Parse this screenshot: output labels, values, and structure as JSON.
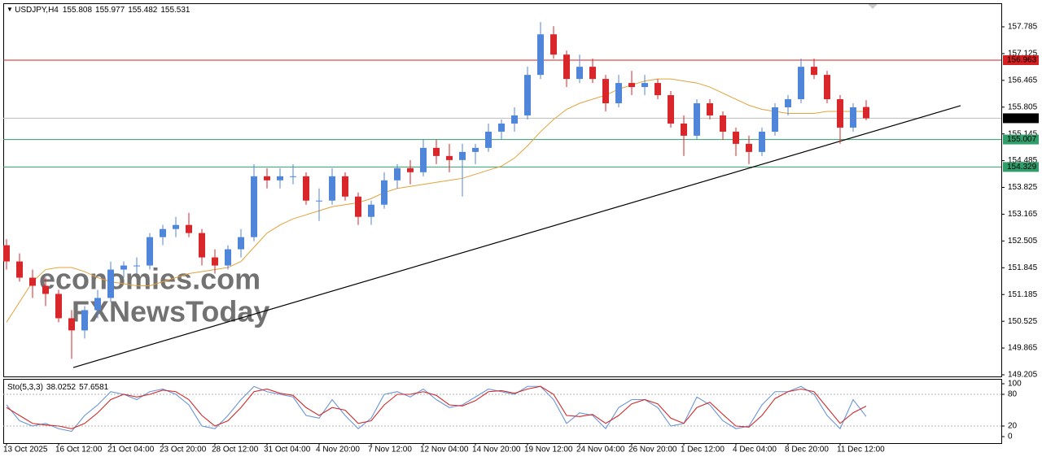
{
  "chart_data": [
    {
      "type": "candlestick",
      "title": "USDJPY,H4",
      "categories": [
        "13 Oct 2025",
        null,
        null,
        null,
        "16 Oct 12:00",
        null,
        null,
        null,
        "21 Oct 04:00",
        null,
        null,
        null,
        "23 Oct 20:00",
        null,
        null,
        null,
        "28 Oct 12:00",
        null,
        null,
        null,
        "31 Oct 04:00",
        null,
        null,
        null,
        "4 Nov 20:00",
        null,
        null,
        null,
        "7 Nov 12:00",
        null,
        null,
        null,
        "12 Nov 04:00",
        null,
        null,
        null,
        "14 Nov 20:00",
        null,
        null,
        null,
        "19 Nov 12:00",
        null,
        null,
        null,
        "24 Nov 04:00",
        null,
        null,
        null,
        "26 Nov 20:00",
        null,
        null,
        null,
        "1 Dec 12:00",
        null,
        null,
        null,
        "4 Dec 04:00",
        null,
        null,
        null,
        "8 Dec 20:00",
        null,
        null,
        null,
        "11 Dec 12:00",
        null,
        null
      ],
      "open": [
        152.4,
        152.0,
        151.6,
        151.4,
        151.2,
        150.6,
        150.3,
        150.8,
        151.1,
        151.8,
        151.9,
        151.9,
        152.6,
        152.8,
        152.9,
        152.7,
        152.1,
        151.9,
        152.3,
        152.6,
        154.1,
        154.0,
        154.1,
        154.1,
        153.5,
        153.5,
        154.1,
        153.6,
        153.1,
        153.4,
        154.0,
        154.3,
        154.2,
        154.8,
        154.6,
        154.5,
        154.7,
        154.8,
        155.2,
        155.4,
        155.6,
        156.6,
        157.6,
        157.1,
        156.5,
        156.8,
        156.5,
        155.9,
        156.4,
        156.3,
        156.4,
        156.1,
        155.4,
        155.1,
        155.9,
        155.6,
        155.2,
        154.9,
        154.7,
        155.2,
        155.8,
        156.0,
        156.8,
        156.6,
        156.0,
        155.3,
        155.808
      ],
      "high": [
        152.55,
        152.2,
        151.8,
        151.6,
        151.3,
        150.8,
        150.9,
        151.3,
        152.0,
        152.0,
        152.1,
        152.7,
        152.9,
        153.1,
        153.2,
        152.8,
        152.3,
        152.4,
        152.8,
        154.4,
        154.3,
        154.3,
        154.4,
        154.2,
        153.8,
        154.3,
        154.2,
        153.7,
        153.5,
        154.2,
        154.4,
        154.5,
        155.0,
        155.0,
        154.9,
        154.9,
        154.9,
        155.4,
        155.5,
        155.8,
        156.8,
        157.9,
        157.8,
        157.2,
        157.1,
        157.0,
        156.6,
        156.6,
        156.7,
        156.6,
        156.5,
        156.2,
        155.6,
        156.0,
        156.0,
        155.7,
        155.3,
        155.1,
        155.3,
        155.9,
        156.1,
        157.0,
        157.0,
        156.7,
        156.1,
        155.9,
        155.977
      ],
      "low": [
        151.8,
        151.5,
        151.1,
        150.9,
        150.5,
        149.6,
        150.1,
        150.6,
        151.0,
        151.6,
        151.7,
        151.8,
        152.4,
        152.6,
        152.6,
        151.9,
        151.7,
        151.8,
        152.1,
        152.5,
        153.8,
        153.8,
        153.9,
        153.4,
        153.0,
        153.4,
        153.5,
        152.9,
        152.9,
        153.3,
        153.8,
        153.9,
        154.1,
        154.4,
        154.2,
        153.6,
        154.4,
        154.7,
        155.0,
        155.2,
        155.5,
        156.5,
        157.0,
        156.3,
        156.4,
        156.4,
        155.7,
        155.8,
        156.1,
        156.1,
        156.0,
        155.3,
        154.6,
        155.0,
        155.5,
        155.0,
        154.6,
        154.4,
        154.6,
        155.1,
        155.6,
        155.9,
        156.5,
        155.9,
        154.9,
        155.2,
        155.482
      ],
      "close": [
        152.0,
        151.6,
        151.4,
        151.2,
        150.6,
        150.3,
        150.8,
        151.1,
        151.8,
        151.9,
        151.9,
        152.6,
        152.8,
        152.9,
        152.7,
        152.1,
        151.9,
        152.3,
        152.6,
        154.1,
        154.0,
        154.1,
        154.1,
        153.5,
        153.5,
        154.1,
        153.6,
        153.1,
        153.4,
        154.0,
        154.3,
        154.2,
        154.8,
        154.6,
        154.5,
        154.7,
        154.8,
        155.2,
        155.4,
        155.6,
        156.6,
        157.6,
        157.1,
        156.5,
        156.8,
        156.5,
        155.9,
        156.4,
        156.3,
        156.4,
        156.1,
        155.4,
        155.1,
        155.9,
        155.6,
        155.2,
        154.9,
        154.7,
        155.2,
        155.8,
        156.0,
        156.8,
        156.6,
        156.0,
        155.3,
        155.8,
        155.531
      ],
      "up_color": "#4f86d9",
      "down_color": "#d8262b",
      "ma": {
        "color": "#e3a23a",
        "values": [
          150.5,
          151.0,
          151.5,
          151.8,
          151.85,
          151.85,
          151.75,
          151.6,
          151.5,
          151.45,
          151.4,
          151.4,
          151.5,
          151.6,
          151.7,
          151.75,
          151.8,
          151.85,
          152.0,
          152.35,
          152.7,
          152.9,
          153.05,
          153.15,
          153.25,
          153.35,
          153.4,
          153.45,
          153.55,
          153.7,
          153.8,
          153.85,
          153.9,
          153.95,
          154.0,
          154.05,
          154.15,
          154.25,
          154.35,
          154.55,
          154.85,
          155.2,
          155.5,
          155.75,
          155.9,
          156.0,
          156.1,
          156.25,
          156.35,
          156.45,
          156.5,
          156.5,
          156.45,
          156.4,
          156.3,
          156.15,
          156.0,
          155.85,
          155.75,
          155.7,
          155.65,
          155.65,
          155.65,
          155.7,
          155.7,
          155.7,
          155.7
        ]
      },
      "ylim": [
        149.165,
        158.366
      ],
      "yticks": [
        157.785,
        157.125,
        156.465,
        155.805,
        155.145,
        154.485,
        153.825,
        153.165,
        152.505,
        151.845,
        151.185,
        150.525,
        149.865,
        149.205
      ],
      "levels": [
        {
          "value": 156.963,
          "color": "#d42020"
        },
        {
          "value": 155.007,
          "color": "#2f9e6b"
        },
        {
          "value": 154.329,
          "color": "#2f9e6b"
        }
      ],
      "price_line_color": "#bdbdbd",
      "trendline": {
        "x": [
          5.125,
          73.25
        ],
        "y": [
          149.385,
          155.841
        ],
        "color": "#000000"
      },
      "watermark": [
        "economies.com",
        "FXNewsToday"
      ]
    },
    {
      "type": "line",
      "title": "Sto(5,3,3)",
      "series": [
        {
          "color": "#6a95d8",
          "values": [
            60,
            30,
            20,
            25,
            15,
            10,
            40,
            60,
            85,
            80,
            70,
            85,
            90,
            80,
            60,
            20,
            15,
            40,
            70,
            95,
            85,
            80,
            75,
            40,
            35,
            70,
            40,
            15,
            35,
            80,
            85,
            75,
            90,
            70,
            55,
            60,
            75,
            90,
            85,
            80,
            95,
            95,
            70,
            25,
            45,
            40,
            15,
            55,
            70,
            70,
            55,
            20,
            25,
            75,
            60,
            30,
            15,
            20,
            60,
            85,
            85,
            95,
            80,
            40,
            15,
            70,
            38.0252
          ]
        },
        {
          "color": "#d22a2a",
          "values": [
            55,
            40,
            25,
            22,
            20,
            15,
            25,
            45,
            70,
            80,
            75,
            80,
            88,
            85,
            70,
            40,
            20,
            30,
            55,
            85,
            90,
            82,
            78,
            55,
            40,
            55,
            50,
            25,
            30,
            60,
            80,
            80,
            85,
            78,
            60,
            58,
            68,
            85,
            87,
            82,
            90,
            95,
            80,
            40,
            38,
            42,
            25,
            40,
            62,
            70,
            62,
            35,
            25,
            55,
            65,
            42,
            20,
            18,
            40,
            72,
            85,
            90,
            85,
            55,
            25,
            45,
            57.6581
          ]
        }
      ],
      "ylim": [
        -12.3,
        107.7
      ],
      "yticks": [
        100,
        80,
        20,
        0
      ],
      "dashed_levels": [
        80,
        20
      ]
    }
  ]
}
